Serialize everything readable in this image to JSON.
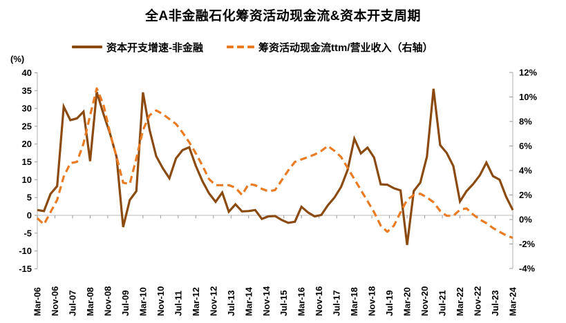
{
  "title": "全A非金融石化筹资活动现金流&资本开支周期",
  "legend": [
    {
      "label": "资本开支增速-非金融",
      "color": "#8B4A0F",
      "style": "solid"
    },
    {
      "label": "筹资活动现金流ttm/营业收入（右轴）",
      "color": "#EA7B22",
      "style": "dashed"
    }
  ],
  "left_axis": {
    "unit_label": "(%)",
    "ticks": [
      "40",
      "35",
      "30",
      "25",
      "20",
      "15",
      "10",
      "5",
      "0",
      "-5",
      "-10",
      "-15"
    ],
    "range": [
      40,
      -15
    ]
  },
  "right_axis": {
    "ticks": [
      "12%",
      "10%",
      "8%",
      "6%",
      "4%",
      "2%",
      "0%",
      "-2%",
      "-4%"
    ],
    "range": [
      12,
      -4
    ]
  },
  "x_axis": {
    "labels": [
      "Mar-06",
      "Nov-06",
      "Jul-07",
      "Mar-08",
      "Nov-08",
      "Jul-09",
      "Mar-10",
      "Nov-10",
      "Jul-11",
      "Mar-12",
      "Nov-12",
      "Jul-13",
      "Mar-14",
      "Nov-14",
      "Jul-15",
      "Mar-16",
      "Nov-16",
      "Jul-17",
      "Mar-18",
      "Nov-18",
      "Jul-19",
      "Mar-20",
      "Nov-20",
      "Jul-21",
      "Mar-22",
      "Nov-22",
      "Jul-23",
      "Mar-24"
    ]
  },
  "chart_data": {
    "type": "line",
    "title": "全A非金融石化筹资活动现金流&资本开支周期",
    "x": [
      "Mar-06",
      "Jun-06",
      "Sep-06",
      "Dec-06",
      "Mar-07",
      "Jun-07",
      "Sep-07",
      "Dec-07",
      "Mar-08",
      "Jun-08",
      "Sep-08",
      "Dec-08",
      "Mar-09",
      "Jun-09",
      "Sep-09",
      "Dec-09",
      "Mar-10",
      "Jun-10",
      "Sep-10",
      "Dec-10",
      "Mar-11",
      "Jun-11",
      "Sep-11",
      "Dec-11",
      "Mar-12",
      "Jun-12",
      "Sep-12",
      "Dec-12",
      "Mar-13",
      "Jun-13",
      "Sep-13",
      "Dec-13",
      "Mar-14",
      "Jun-14",
      "Sep-14",
      "Dec-14",
      "Mar-15",
      "Jun-15",
      "Sep-15",
      "Dec-15",
      "Mar-16",
      "Jun-16",
      "Sep-16",
      "Dec-16",
      "Mar-17",
      "Jun-17",
      "Sep-17",
      "Dec-17",
      "Mar-18",
      "Jun-18",
      "Sep-18",
      "Dec-18",
      "Mar-19",
      "Jun-19",
      "Sep-19",
      "Dec-19",
      "Mar-20",
      "Jun-20",
      "Sep-20",
      "Dec-20",
      "Mar-21",
      "Jun-21",
      "Sep-21",
      "Dec-21",
      "Mar-22",
      "Jun-22",
      "Sep-22",
      "Dec-22",
      "Mar-23",
      "Jun-23",
      "Sep-23",
      "Dec-23",
      "Mar-24"
    ],
    "series": [
      {
        "name": "资本开支增速-非金融",
        "axis": "left",
        "unit": "%",
        "values": [
          1.5,
          1.2,
          6.0,
          8.2,
          30.5,
          26.7,
          27.2,
          29.1,
          15.2,
          34.6,
          28.5,
          23.0,
          16.4,
          -3.3,
          4.3,
          6.8,
          34.5,
          24.0,
          16.6,
          13.2,
          10.4,
          16.0,
          18.3,
          19.1,
          13.9,
          9.6,
          6.2,
          3.8,
          6.4,
          1.0,
          3.1,
          1.1,
          1.2,
          1.5,
          -1.0,
          -0.3,
          -0.2,
          -1.3,
          -2.1,
          -1.8,
          2.4,
          0.8,
          -0.3,
          0.1,
          2.8,
          5.0,
          8.0,
          12.8,
          21.5,
          17.4,
          19.0,
          16.2,
          8.7,
          8.6,
          7.6,
          7.0,
          -8.3,
          6.8,
          9.2,
          16.5,
          35.5,
          19.7,
          17.5,
          13.8,
          3.9,
          6.8,
          8.8,
          11.2,
          14.8,
          11.0,
          10.0,
          5.2,
          1.5
        ]
      },
      {
        "name": "筹资活动现金流ttm/营业收入（右轴）",
        "axis": "right",
        "unit": "%",
        "values": [
          0.1,
          -0.4,
          0.6,
          1.6,
          3.5,
          4.6,
          4.7,
          6.2,
          8.5,
          10.7,
          9.4,
          7.1,
          5.1,
          3.0,
          2.9,
          5.0,
          7.3,
          8.5,
          8.9,
          8.6,
          8.2,
          7.8,
          7.1,
          6.3,
          5.4,
          4.4,
          3.3,
          2.8,
          2.8,
          2.8,
          2.6,
          2.0,
          2.9,
          2.8,
          2.5,
          2.3,
          2.4,
          3.2,
          4.0,
          4.7,
          4.9,
          5.1,
          5.3,
          5.6,
          6.0,
          5.6,
          5.1,
          4.2,
          3.3,
          2.4,
          1.5,
          0.6,
          -0.5,
          -1.0,
          -0.5,
          0.6,
          1.6,
          2.0,
          2.1,
          1.8,
          1.4,
          0.7,
          0.3,
          0.3,
          0.8,
          0.9,
          0.4,
          0.0,
          -0.3,
          -0.7,
          -1.0,
          -1.3,
          -1.5
        ]
      }
    ],
    "ylim_left": [
      -15,
      40
    ],
    "ylim_right": [
      -4,
      12
    ],
    "grid": "zero-line-only",
    "legend_position": "top"
  },
  "colors": {
    "capex_line": "#8B4A0F",
    "financing_line": "#EA7B22",
    "axis_line": "#BFBFBF",
    "tick_mark": "#999999",
    "zero_line": "#C6C6C6",
    "text": "#000000"
  }
}
